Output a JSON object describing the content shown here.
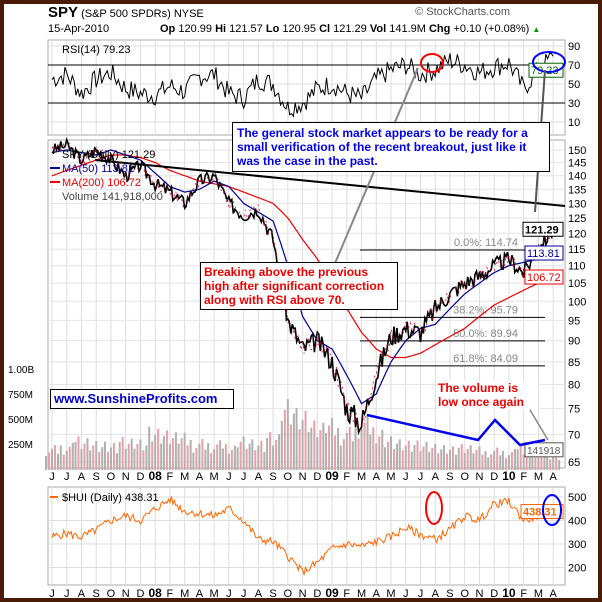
{
  "header": {
    "symbol": "SPY",
    "name": "(S&P 500 SPDRs)",
    "exchange": "NYSE",
    "copyright": "© StockCharts.com",
    "date": "15-Apr-2010",
    "op_label": "Op",
    "op": "120.99",
    "hi_label": "Hi",
    "hi": "121.57",
    "lo_label": "Lo",
    "lo": "120.95",
    "cl_label": "Cl",
    "cl": "121.29",
    "vol_label": "Vol",
    "vol": "141.9M",
    "chg_label": "Chg",
    "chg": "+0.10 (+0.08%)",
    "chg_arrow": "▲"
  },
  "colors": {
    "price_up": "#000000",
    "price_down": "#cc0033",
    "ma50": "#000099",
    "ma200": "#ee0000",
    "hui": "#ff6600",
    "volume": "#b0b0b0",
    "annotation_blue": "#0000ff",
    "annotation_red": "#ff0000"
  },
  "annotations": {
    "blue_box": "The general stock market appears to be ready for a small verification of the recent breakout, just like it was the case in the past.",
    "red_box": "Breaking above the previous high after significant correction along with RSI above 70.",
    "website": "www.SunshineProfits.com",
    "volume_note": "The volume is low once again"
  },
  "chart_data": [
    {
      "type": "line",
      "title": "RSI(14) 79.23",
      "legend": "RSI(14) 79.23",
      "last_value_label": "79.23",
      "yticks": [
        "90",
        "70",
        "50",
        "30",
        "10"
      ],
      "ylim": [
        0,
        100
      ],
      "x_months": [
        "J",
        "J",
        "A",
        "S",
        "O",
        "N",
        "D",
        "08",
        "F",
        "M",
        "A",
        "M",
        "J",
        "J",
        "A",
        "S",
        "O",
        "N",
        "D",
        "09",
        "F",
        "M",
        "A",
        "M",
        "J",
        "J",
        "A",
        "S",
        "O",
        "N",
        "D",
        "10",
        "F",
        "M",
        "A"
      ],
      "values": [
        55,
        60,
        40,
        55,
        62,
        45,
        40,
        38,
        48,
        42,
        58,
        60,
        40,
        35,
        55,
        50,
        25,
        30,
        45,
        50,
        40,
        35,
        55,
        65,
        70,
        60,
        65,
        75,
        70,
        62,
        68,
        72,
        45,
        65,
        79.23
      ]
    },
    {
      "type": "line",
      "title": "SPY (Daily) 121.29",
      "scale": "log",
      "ylim": [
        65,
        150
      ],
      "yticks": [
        "150",
        "145",
        "140",
        "135",
        "130",
        "125",
        "120",
        "115",
        "110",
        "105",
        "100",
        "95",
        "90",
        "85",
        "80",
        "75",
        "70",
        "65"
      ],
      "volume_ticks": [
        "1.00B",
        "750M",
        "500M",
        "250M"
      ],
      "x_labels": [
        "J",
        "J",
        "A",
        "S",
        "O",
        "N",
        "D",
        "08",
        "F",
        "M",
        "A",
        "M",
        "J",
        "J",
        "A",
        "S",
        "O",
        "N",
        "D",
        "09",
        "F",
        "M",
        "A",
        "M",
        "J",
        "J",
        "A",
        "S",
        "O",
        "N",
        "D",
        "10",
        "F",
        "M",
        "A"
      ],
      "series": [
        {
          "name": "SPY (Daily) 121.29",
          "last_label": "121.29",
          "values": [
            150,
            152,
            146,
            150,
            146,
            140,
            144,
            137,
            134,
            130,
            138,
            140,
            130,
            126,
            128,
            118,
            95,
            88,
            90,
            85,
            75,
            72,
            82,
            91,
            93,
            92,
            98,
            102,
            105,
            107,
            110,
            112,
            108,
            115,
            121.29
          ]
        },
        {
          "name": "MA(50) 113.81",
          "last_label": "113.81",
          "values": [
            149,
            150,
            149,
            148,
            150,
            148,
            146,
            141,
            136,
            134,
            135,
            138,
            136,
            130,
            127,
            124,
            110,
            96,
            90,
            88,
            82,
            76,
            78,
            85,
            90,
            93,
            94,
            98,
            102,
            105,
            108,
            110,
            111,
            112,
            113.81
          ]
        },
        {
          "name": "MA(200) 106.72",
          "last_label": "106.72",
          "values": [
            140,
            142,
            144,
            146,
            148,
            148,
            147,
            145,
            142,
            140,
            138,
            137,
            136,
            134,
            132,
            130,
            125,
            118,
            112,
            105,
            98,
            92,
            88,
            86,
            86,
            87,
            89,
            91,
            93,
            96,
            99,
            101,
            103,
            105,
            106.72
          ]
        },
        {
          "name": "Volume 141,918,000",
          "last_label": "141918",
          "unit": "millions",
          "values": [
            200,
            220,
            300,
            260,
            240,
            280,
            260,
            350,
            320,
            300,
            250,
            240,
            230,
            300,
            260,
            320,
            600,
            500,
            400,
            420,
            350,
            450,
            380,
            300,
            260,
            250,
            220,
            200,
            210,
            190,
            180,
            170,
            220,
            200,
            142
          ]
        }
      ],
      "fibonacci": [
        {
          "label": "0.0%: 114.74",
          "value": 114.74
        },
        {
          "label": "38.2%: 95.79",
          "value": 95.79
        },
        {
          "label": "50.0%: 89.94",
          "value": 89.94
        },
        {
          "label": "61.8%: 84.09",
          "value": 84.09
        }
      ]
    },
    {
      "type": "line",
      "title": "$HUI (Daily) 438.31",
      "legend": "$HUI (Daily) 438.31",
      "last_value_label": "438.31",
      "yticks": [
        "500",
        "400",
        "300",
        "200"
      ],
      "ylim": [
        140,
        520
      ],
      "values": [
        330,
        345,
        330,
        360,
        400,
        420,
        400,
        450,
        490,
        440,
        430,
        420,
        450,
        400,
        320,
        310,
        250,
        180,
        220,
        280,
        300,
        290,
        310,
        330,
        370,
        340,
        320,
        360,
        420,
        400,
        470,
        480,
        400,
        420,
        438.31
      ]
    }
  ]
}
